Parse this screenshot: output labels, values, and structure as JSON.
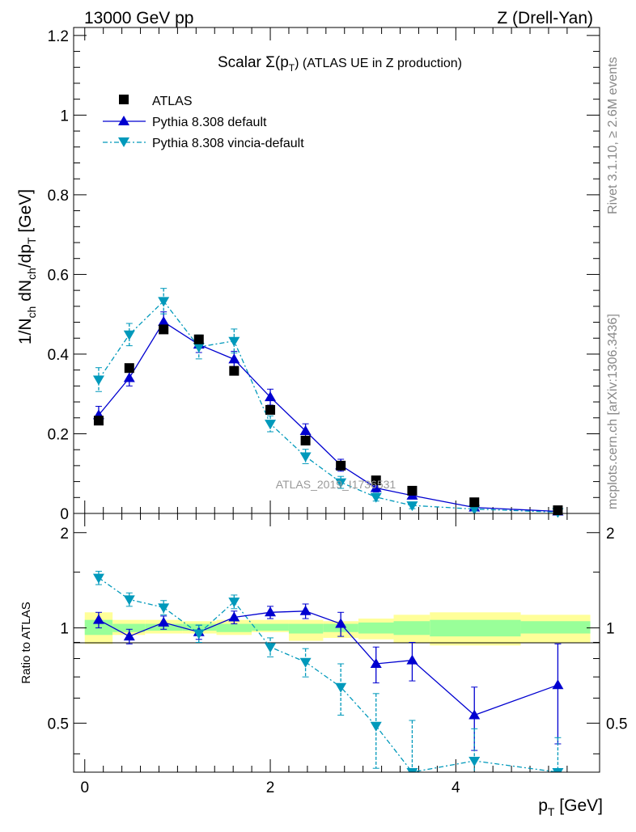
{
  "header": {
    "energy": "13000 GeV pp",
    "process": "Z (Drell-Yan)",
    "side_top": "Rivet 3.1.10, ≥ 2.6M events",
    "side_bottom": "mcplots.cern.ch [arXiv:1306.3436]"
  },
  "chart_data": [
    {
      "type": "scatter",
      "title_main": "Scalar Σ(p",
      "title_sub": "T",
      "title_rest": ") (ATLAS UE in Z production)",
      "ylabel": "1/N_ch dN_ch/dp_T [GeV]",
      "ylabel_parts": {
        "a": "1/N",
        "a_sub": "ch",
        "b": " dN",
        "b_sub": "ch",
        "c": "/dp",
        "c_sub": "T",
        "d": " [GeV]"
      },
      "ylim": [
        0,
        1.22
      ],
      "xlim": [
        -0.12,
        5.55
      ],
      "yticks": [
        0,
        0.2,
        0.4,
        0.6,
        0.8,
        1,
        1.2
      ],
      "yticklabels": [
        "0",
        "0.2",
        "0.4",
        "0.6",
        "0.8",
        "1",
        "1.2"
      ],
      "watermark": "ATLAS_2019_I1736531",
      "legend_position": "top-left",
      "series": [
        {
          "name": "ATLAS",
          "color": "#000000",
          "marker": "square",
          "x": [
            0.15,
            0.48,
            0.85,
            1.23,
            1.61,
            2.0,
            2.38,
            2.76,
            3.14,
            3.53,
            4.2,
            5.1
          ],
          "y": [
            0.233,
            0.365,
            0.462,
            0.437,
            0.358,
            0.26,
            0.183,
            0.12,
            0.083,
            0.057,
            0.028,
            0.008
          ]
        },
        {
          "name": "Pythia 8.308 default",
          "color": "#0000d0",
          "marker": "triangle-up",
          "line": "solid",
          "x": [
            0.15,
            0.48,
            0.85,
            1.23,
            1.61,
            2.0,
            2.38,
            2.76,
            3.14,
            3.53,
            4.2,
            5.1
          ],
          "y": [
            0.247,
            0.34,
            0.481,
            0.424,
            0.387,
            0.292,
            0.207,
            0.121,
            0.064,
            0.045,
            0.015,
            0.005
          ],
          "err": [
            0.022,
            0.02,
            0.025,
            0.02,
            0.02,
            0.02,
            0.018,
            0.015,
            0.01,
            0.008,
            0.005,
            0.003
          ]
        },
        {
          "name": "Pythia 8.308 vincia-default",
          "color": "#0099bb",
          "marker": "triangle-down",
          "line": "dashdot",
          "x": [
            0.15,
            0.48,
            0.85,
            1.23,
            1.61,
            2.0,
            2.38,
            2.76,
            3.14,
            3.53,
            4.2,
            5.1
          ],
          "y": [
            0.336,
            0.449,
            0.533,
            0.418,
            0.433,
            0.225,
            0.143,
            0.078,
            0.041,
            0.02,
            0.011,
            0.003
          ],
          "err": [
            0.03,
            0.028,
            0.032,
            0.03,
            0.03,
            0.02,
            0.018,
            0.015,
            0.01,
            0.008,
            0.005,
            0.003
          ]
        }
      ]
    },
    {
      "type": "scatter",
      "ylabel": "Ratio to ATLAS",
      "ylim": [
        0.35,
        2.3
      ],
      "xlim": [
        -0.12,
        5.55
      ],
      "yticks": [
        0.5,
        1,
        2
      ],
      "yticklabels": [
        "0.5",
        "1",
        "2"
      ],
      "xticks": [
        0,
        2,
        4
      ],
      "xticklabels": [
        "0",
        "2",
        "4"
      ],
      "xlabel_main": "p",
      "xlabel_sub": "T",
      "xlabel_rest": " [GeV]",
      "bands": {
        "edges": [
          0.0,
          0.3,
          0.65,
          1.05,
          1.42,
          1.8,
          2.2,
          2.57,
          2.95,
          3.33,
          3.72,
          4.7,
          5.45
        ],
        "yellow_lo": [
          0.89,
          0.95,
          0.96,
          0.96,
          0.95,
          0.97,
          0.91,
          0.93,
          0.92,
          0.9,
          0.88,
          0.9,
          0.66
        ],
        "yellow_hi": [
          1.12,
          1.06,
          1.06,
          1.05,
          1.06,
          1.06,
          1.06,
          1.05,
          1.07,
          1.1,
          1.12,
          1.1,
          1.45
        ],
        "green_lo": [
          0.95,
          0.97,
          0.98,
          0.98,
          0.97,
          0.98,
          0.96,
          0.97,
          0.96,
          0.95,
          0.94,
          0.96,
          0.86
        ],
        "green_hi": [
          1.06,
          1.03,
          1.03,
          1.03,
          1.03,
          1.03,
          1.03,
          1.03,
          1.04,
          1.05,
          1.06,
          1.05,
          1.23
        ]
      },
      "series": [
        {
          "name": "Pythia 8.308 default",
          "color": "#0000d0",
          "x": [
            0.15,
            0.48,
            0.85,
            1.23,
            1.61,
            2.0,
            2.38,
            2.76,
            3.14,
            3.53,
            4.2,
            5.1
          ],
          "y": [
            1.06,
            0.94,
            1.04,
            0.97,
            1.08,
            1.12,
            1.13,
            1.03,
            0.77,
            0.79,
            0.53,
            0.66
          ],
          "err": [
            0.06,
            0.05,
            0.05,
            0.05,
            0.05,
            0.05,
            0.06,
            0.09,
            0.1,
            0.11,
            0.12,
            0.23
          ]
        },
        {
          "name": "Pythia 8.308 vincia-default",
          "color": "#0099bb",
          "x": [
            0.15,
            0.48,
            0.85,
            1.23,
            1.61,
            2.0,
            2.38,
            2.76,
            3.14,
            3.53,
            4.2,
            5.1
          ],
          "y": [
            1.44,
            1.23,
            1.16,
            0.96,
            1.21,
            0.87,
            0.78,
            0.65,
            0.49,
            0.35,
            0.38,
            0.35
          ],
          "err": [
            0.07,
            0.06,
            0.06,
            0.06,
            0.06,
            0.06,
            0.08,
            0.12,
            0.13,
            0.16,
            0.1,
            0.1
          ]
        }
      ]
    }
  ]
}
